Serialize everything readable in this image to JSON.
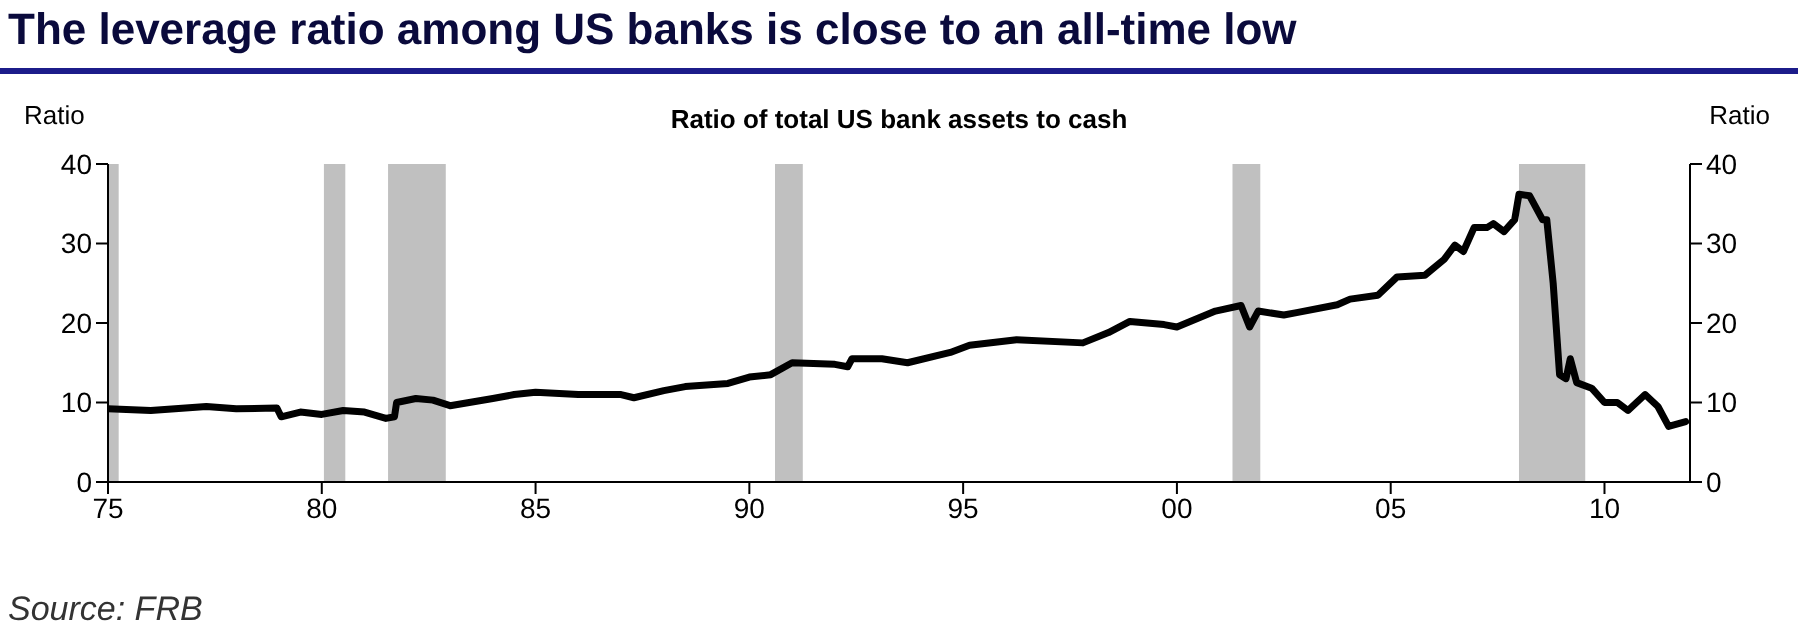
{
  "chart_data": {
    "type": "line",
    "title": "The leverage ratio among US banks is close to an all-time low",
    "subtitle": "Ratio of total US bank assets to cash",
    "ylabel": "Ratio",
    "y2label": "Ratio",
    "annotations": [
      "Source: FRB"
    ],
    "x": [
      1975.0,
      1976.0,
      1977.3,
      1978.0,
      1978.95,
      1979.05,
      1979.5,
      1980.0,
      1980.5,
      1981.0,
      1981.5,
      1981.7,
      1981.75,
      1982.2,
      1982.6,
      1983.0,
      1984.0,
      1984.5,
      1985.0,
      1986.0,
      1987.0,
      1987.3,
      1988.0,
      1988.5,
      1989.5,
      1990.0,
      1990.5,
      1991.0,
      1992.0,
      1992.3,
      1992.4,
      1993.1,
      1993.7,
      1994.7,
      1995.15,
      1996.25,
      1997.8,
      1998.4,
      1998.9,
      1999.7,
      2000.0,
      2000.9,
      2001.5,
      2001.7,
      2001.9,
      2002.5,
      2002.8,
      2003.75,
      2004.05,
      2004.7,
      2005.15,
      2005.8,
      2006.25,
      2006.5,
      2006.7,
      2006.95,
      2007.25,
      2007.4,
      2007.65,
      2007.9,
      2008.0,
      2008.25,
      2008.55,
      2008.65,
      2008.8,
      2008.95,
      2009.1,
      2009.2,
      2009.35,
      2009.7,
      2010.0,
      2010.3,
      2010.55,
      2010.95,
      2011.25,
      2011.5,
      2011.9
    ],
    "series": [
      {
        "color": "#000000",
        "values": [
          9.2,
          9.0,
          9.5,
          9.2,
          9.3,
          8.2,
          8.8,
          8.5,
          9.0,
          8.8,
          8.0,
          8.2,
          10.0,
          10.5,
          10.3,
          9.6,
          10.5,
          11.0,
          11.3,
          11.0,
          11.0,
          10.6,
          11.5,
          12.0,
          12.4,
          13.2,
          13.5,
          15.0,
          14.8,
          14.5,
          15.5,
          15.5,
          15.0,
          16.3,
          17.2,
          17.9,
          17.5,
          18.8,
          20.2,
          19.8,
          19.5,
          21.5,
          22.2,
          19.5,
          21.5,
          21.0,
          21.3,
          22.3,
          23.0,
          23.5,
          25.8,
          26.0,
          28.0,
          29.8,
          29.0,
          32.0,
          32.0,
          32.5,
          31.5,
          33.0,
          36.2,
          36.0,
          33.0,
          33.0,
          25.0,
          13.5,
          13.0,
          15.5,
          12.5,
          11.8,
          10.0,
          10.0,
          9.0,
          11.0,
          9.5,
          7.0,
          7.6
        ]
      }
    ],
    "xlim": [
      1975,
      2012
    ],
    "xticks": [
      {
        "value": 1975,
        "label": "75"
      },
      {
        "value": 1980,
        "label": "80"
      },
      {
        "value": 1985,
        "label": "85"
      },
      {
        "value": 1990,
        "label": "90"
      },
      {
        "value": 1995,
        "label": "95"
      },
      {
        "value": 2000,
        "label": "00"
      },
      {
        "value": 2005,
        "label": "05"
      },
      {
        "value": 2010,
        "label": "10"
      }
    ],
    "ylim": [
      0,
      40
    ],
    "yticks": [
      0,
      10,
      20,
      30,
      40
    ],
    "y2lim": [
      0,
      40
    ],
    "y2ticks": [
      0,
      10,
      20,
      30,
      40
    ],
    "bands": [
      {
        "axis": "x",
        "from": 1975.0,
        "to": 1975.25,
        "color": "#c0c0c0"
      },
      {
        "axis": "x",
        "from": 1980.05,
        "to": 1980.55,
        "color": "#c0c0c0"
      },
      {
        "axis": "x",
        "from": 1981.55,
        "to": 1982.9,
        "color": "#c0c0c0"
      },
      {
        "axis": "x",
        "from": 1990.6,
        "to": 1991.25,
        "color": "#c0c0c0"
      },
      {
        "axis": "x",
        "from": 2001.3,
        "to": 2001.95,
        "color": "#c0c0c0"
      },
      {
        "axis": "x",
        "from": 2008.0,
        "to": 2009.55,
        "color": "#c0c0c0"
      }
    ],
    "grid": false,
    "legend": false,
    "marker": "none",
    "line_style": "solid"
  }
}
